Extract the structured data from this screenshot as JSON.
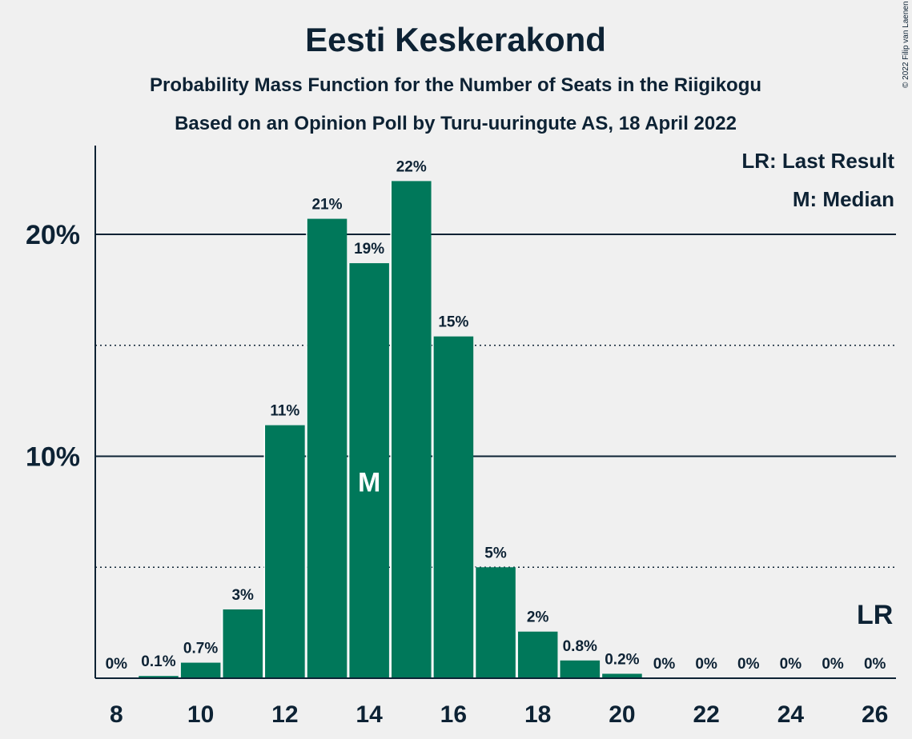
{
  "chart_data": {
    "type": "bar",
    "title": "Eesti Keskerakond",
    "subtitle_lines": [
      "Probability Mass Function for the Number of Seats in the Riigikogu",
      "Based on an Opinion Poll by Turu-uuringute AS, 18 April 2022"
    ],
    "copyright": "© 2022 Filip van Laenen",
    "legend": [
      "LR: Last Result",
      "M: Median"
    ],
    "x": [
      8,
      9,
      10,
      11,
      12,
      13,
      14,
      15,
      16,
      17,
      18,
      19,
      20,
      21,
      22,
      23,
      24,
      25,
      26
    ],
    "values": [
      0,
      0.1,
      0.7,
      3.1,
      11.4,
      20.7,
      18.7,
      22.4,
      15.4,
      5.0,
      2.1,
      0.8,
      0.2,
      0,
      0,
      0,
      0,
      0,
      0
    ],
    "labels": [
      "0%",
      "0.1%",
      "0.7%",
      "3%",
      "11%",
      "21%",
      "19%",
      "22%",
      "15%",
      "5%",
      "2%",
      "0.8%",
      "0.2%",
      "0%",
      "0%",
      "0%",
      "0%",
      "0%",
      "0%"
    ],
    "x_tick_values": [
      8,
      10,
      12,
      14,
      16,
      18,
      20,
      22,
      24,
      26
    ],
    "y_ticks": [
      {
        "value": 10,
        "label": "10%"
      },
      {
        "value": 20,
        "label": "20%"
      }
    ],
    "y_minor_gridlines": [
      5,
      15
    ],
    "ylim": [
      0,
      24
    ],
    "median_seat": 14,
    "median_marker": "M",
    "last_result_seat": 26,
    "last_result_marker": "LR",
    "colors": {
      "bar": "#00785a",
      "text": "#0d2234",
      "background": "#f0f0f0"
    }
  }
}
